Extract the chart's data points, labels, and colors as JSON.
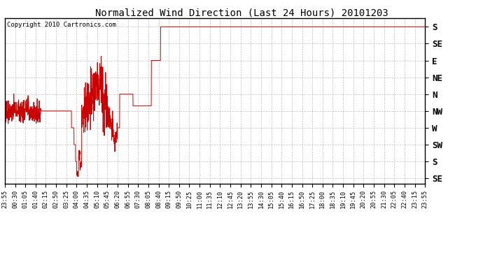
{
  "title": "Normalized Wind Direction (Last 24 Hours) 20101203",
  "copyright": "Copyright 2010 Cartronics.com",
  "bg_color": "#ffffff",
  "plot_bg_color": "#ffffff",
  "line_color": "#cc0000",
  "grid_color": "#b0b0b0",
  "ytick_labels": [
    "S",
    "SE",
    "E",
    "NE",
    "N",
    "NW",
    "W",
    "SW",
    "S",
    "SE"
  ],
  "ytick_values": [
    9,
    8,
    7,
    6,
    5,
    4,
    3,
    2,
    1,
    0
  ],
  "xtick_labels": [
    "23:55",
    "00:30",
    "01:05",
    "01:40",
    "02:15",
    "02:50",
    "03:25",
    "04:00",
    "04:35",
    "05:10",
    "05:45",
    "06:20",
    "06:55",
    "07:30",
    "08:05",
    "08:40",
    "09:15",
    "09:50",
    "10:25",
    "11:00",
    "11:35",
    "12:10",
    "12:45",
    "13:20",
    "13:55",
    "14:30",
    "15:05",
    "15:40",
    "16:15",
    "16:50",
    "17:25",
    "18:00",
    "18:35",
    "19:10",
    "19:45",
    "20:20",
    "20:55",
    "21:30",
    "22:05",
    "22:40",
    "23:15",
    "23:55"
  ],
  "ylim": [
    -0.3,
    9.5
  ],
  "xlim": [
    0,
    41
  ]
}
